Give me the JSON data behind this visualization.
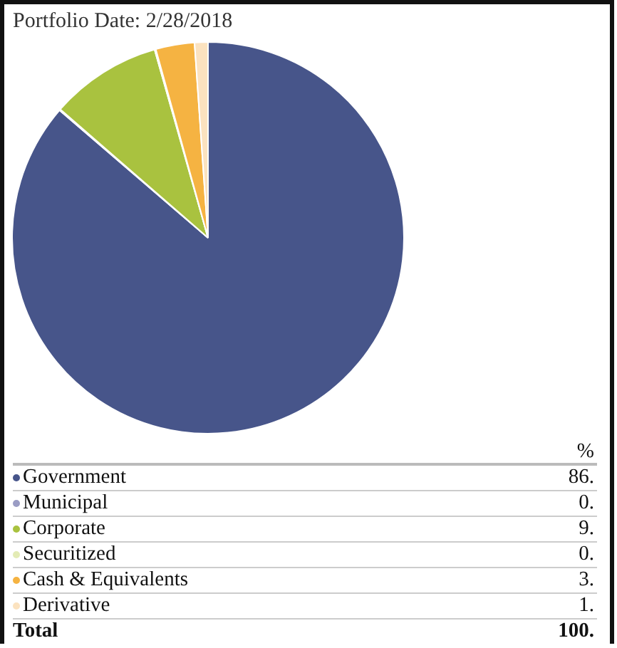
{
  "chart_data": {
    "type": "pie",
    "title": "Portfolio Date: 2/28/2018",
    "categories": [
      "Government",
      "Municipal",
      "Corporate",
      "Securitized",
      "Cash & Equivalents",
      "Derivative"
    ],
    "values": [
      86.3,
      0.1,
      9.2,
      0.1,
      3.2,
      1.1
    ],
    "value_labels": [
      "86.",
      "0.",
      "9.",
      "0.",
      "3.",
      "1."
    ],
    "colors": [
      "#47558a",
      "#9a9cc4",
      "#a9c23f",
      "#e3ebb5",
      "#f5b342",
      "#fbe2bf"
    ],
    "legend_title": "%",
    "legend": "bottom",
    "annotations": [
      "Total",
      "100."
    ]
  }
}
